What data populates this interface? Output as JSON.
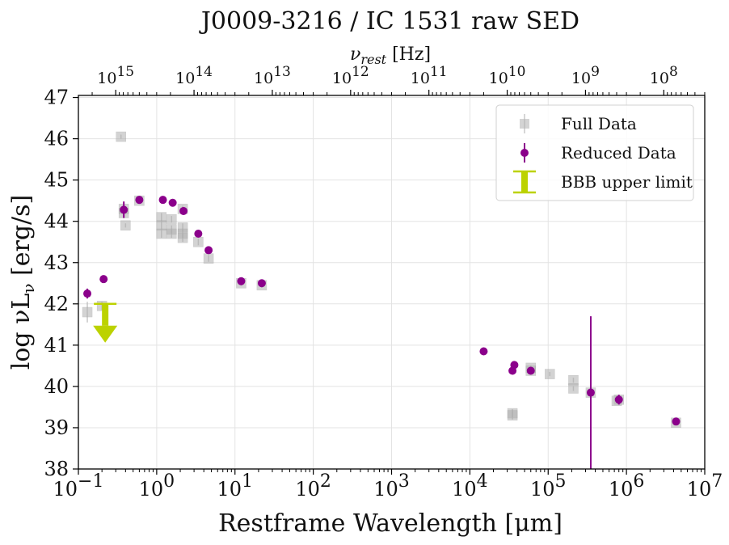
{
  "chart_data": {
    "type": "scatter",
    "title": "J0009-3216 / IC 1531  raw SED",
    "xlabel": "Restframe Wavelength [μm]",
    "ylabel": "log νL",
    "ylabel_sub": "ν",
    "ylabel_unit": " [erg/s]",
    "x2label_sym": "ν",
    "x2label_sub": "rest",
    "x2label_unit": " [Hz]",
    "xscale": "log",
    "xlim": [
      0.1,
      10000000
    ],
    "ylim": [
      38,
      47.05
    ],
    "xticks": [
      {
        "base": "10",
        "exp": "−1",
        "value": 0.1
      },
      {
        "base": "10",
        "exp": "0",
        "value": 1
      },
      {
        "base": "10",
        "exp": "1",
        "value": 10
      },
      {
        "base": "10",
        "exp": "2",
        "value": 100
      },
      {
        "base": "10",
        "exp": "3",
        "value": 1000
      },
      {
        "base": "10",
        "exp": "4",
        "value": 10000
      },
      {
        "base": "10",
        "exp": "5",
        "value": 100000
      },
      {
        "base": "10",
        "exp": "6",
        "value": 1000000
      },
      {
        "base": "10",
        "exp": "7",
        "value": 10000000
      }
    ],
    "yticks": [
      "38",
      "39",
      "40",
      "41",
      "42",
      "43",
      "44",
      "45",
      "46",
      "47"
    ],
    "x2ticks": [
      {
        "base": "10",
        "exp": "15",
        "value": 1000000000000000.0
      },
      {
        "base": "10",
        "exp": "14",
        "value": 100000000000000.0
      },
      {
        "base": "10",
        "exp": "13",
        "value": 10000000000000.0
      },
      {
        "base": "10",
        "exp": "12",
        "value": 1000000000000.0
      },
      {
        "base": "10",
        "exp": "11",
        "value": 100000000000.0
      },
      {
        "base": "10",
        "exp": "10",
        "value": 10000000000.0
      },
      {
        "base": "10",
        "exp": "9",
        "value": 1000000000.0
      },
      {
        "base": "10",
        "exp": "8",
        "value": 100000000.0
      }
    ],
    "grid": true,
    "legend_position": "top-right",
    "series": [
      {
        "name": "Full Data",
        "marker": "square",
        "color": "#b0b0b0",
        "points": [
          {
            "x": 0.13,
            "y": 41.8,
            "err": 0.25
          },
          {
            "x": 0.2,
            "y": 41.95,
            "err": 0.1
          },
          {
            "x": 0.35,
            "y": 46.05,
            "err": 0.05
          },
          {
            "x": 0.38,
            "y": 44.3,
            "err": 0.1
          },
          {
            "x": 0.38,
            "y": 44.2,
            "err": 0.1
          },
          {
            "x": 0.4,
            "y": 43.9,
            "err": 0.05
          },
          {
            "x": 0.6,
            "y": 44.5,
            "err": 0.08
          },
          {
            "x": 1.15,
            "y": 44.1,
            "err": 0.1
          },
          {
            "x": 1.15,
            "y": 43.9,
            "err": 0.1
          },
          {
            "x": 1.15,
            "y": 43.7,
            "err": 0.1
          },
          {
            "x": 1.55,
            "y": 44.05,
            "err": 0.08
          },
          {
            "x": 1.55,
            "y": 43.8,
            "err": 0.1
          },
          {
            "x": 1.55,
            "y": 43.7,
            "err": 0.1
          },
          {
            "x": 2.15,
            "y": 44.3,
            "err": 0.08
          },
          {
            "x": 2.15,
            "y": 43.85,
            "err": 0.1
          },
          {
            "x": 2.15,
            "y": 43.7,
            "err": 0.1
          },
          {
            "x": 2.15,
            "y": 43.6,
            "err": 0.1
          },
          {
            "x": 3.4,
            "y": 43.5,
            "err": 0.08
          },
          {
            "x": 4.6,
            "y": 43.1,
            "err": 0.08
          },
          {
            "x": 12,
            "y": 42.5,
            "err": 0.06
          },
          {
            "x": 22,
            "y": 42.45,
            "err": 0.06
          },
          {
            "x": 35000,
            "y": 39.35,
            "err": 0.1
          },
          {
            "x": 35000,
            "y": 39.3,
            "err": 0.1
          },
          {
            "x": 60000,
            "y": 40.45,
            "err": 0.06
          },
          {
            "x": 60000,
            "y": 40.38,
            "err": 0.06
          },
          {
            "x": 105000,
            "y": 40.3,
            "err": 0.05
          },
          {
            "x": 210000,
            "y": 40.15,
            "err": 0.06
          },
          {
            "x": 210000,
            "y": 39.95,
            "err": 0.06
          },
          {
            "x": 350000,
            "y": 39.85,
            "err": 0.06
          },
          {
            "x": 800000,
            "y": 39.68,
            "err": 0.06
          },
          {
            "x": 750000,
            "y": 39.65,
            "err": 0.06
          },
          {
            "x": 4300000,
            "y": 39.12,
            "err": 0.05
          }
        ]
      },
      {
        "name": "Reduced Data",
        "marker": "circle",
        "color": "#8b008b",
        "points": [
          {
            "x": 0.13,
            "y": 42.25,
            "err": 0.12
          },
          {
            "x": 0.21,
            "y": 42.6,
            "err": 0.05
          },
          {
            "x": 0.38,
            "y": 44.28,
            "err": 0.2
          },
          {
            "x": 0.6,
            "y": 44.52,
            "err": 0.05
          },
          {
            "x": 1.2,
            "y": 44.52,
            "err": 0.05
          },
          {
            "x": 1.6,
            "y": 44.45,
            "err": 0.05
          },
          {
            "x": 2.2,
            "y": 44.25,
            "err": 0.05
          },
          {
            "x": 3.4,
            "y": 43.7,
            "err": 0.05
          },
          {
            "x": 4.6,
            "y": 43.3,
            "err": 0.05
          },
          {
            "x": 12,
            "y": 42.55,
            "err": 0.05
          },
          {
            "x": 22,
            "y": 42.5,
            "err": 0.05
          },
          {
            "x": 15000,
            "y": 40.85,
            "err": 0.05
          },
          {
            "x": 35000,
            "y": 40.38,
            "err": 0.05
          },
          {
            "x": 37000,
            "y": 40.52,
            "err": 0.05
          },
          {
            "x": 60000,
            "y": 40.38,
            "err": 0.05
          },
          {
            "x": 350000,
            "y": 39.85,
            "err": 1.85
          },
          {
            "x": 800000,
            "y": 39.68,
            "err": 0.12
          },
          {
            "x": 4300000,
            "y": 39.15,
            "err": 0.05
          }
        ]
      },
      {
        "name": "BBB upper limit",
        "marker": "upper-limit",
        "color": "#bcd200",
        "points": [
          {
            "x": 0.22,
            "y": 42.0
          }
        ]
      }
    ]
  }
}
